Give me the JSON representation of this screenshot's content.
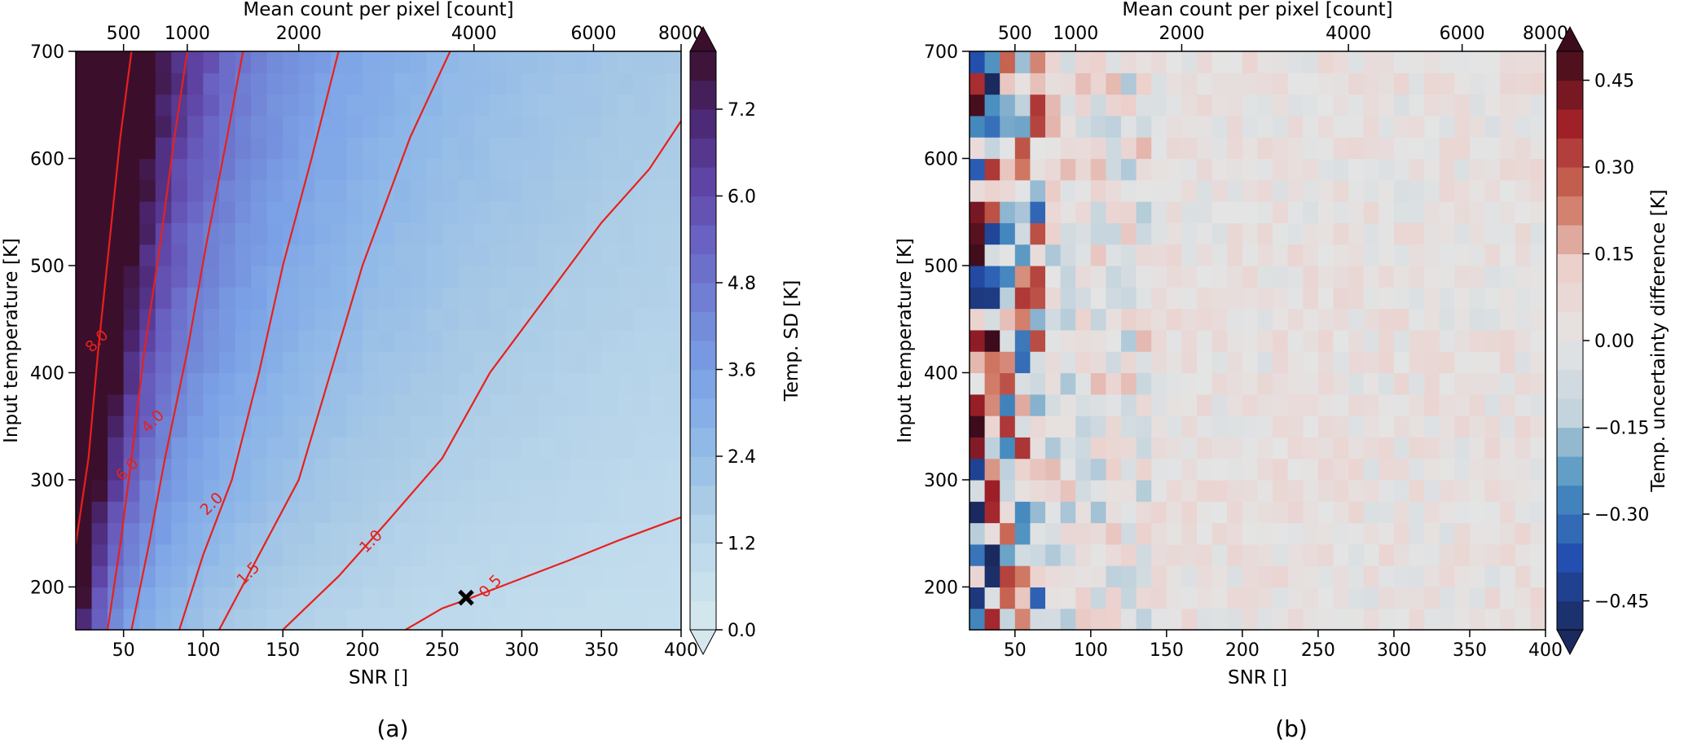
{
  "figure": {
    "panel_labels": [
      "(a)",
      "(b)"
    ]
  },
  "chart_data": [
    {
      "type": "heatmap",
      "panel": "(a)",
      "xlabel": "SNR []",
      "ylabel": "Input temperature [K]",
      "top_xlabel": "Mean count per pixel [count]",
      "xlim": [
        20,
        400
      ],
      "ylim": [
        160,
        700
      ],
      "x_ticks": [
        50,
        100,
        150,
        200,
        250,
        300,
        350,
        400
      ],
      "y_ticks": [
        200,
        300,
        400,
        500,
        600,
        700
      ],
      "top_x_ticks": [
        {
          "label": "500",
          "snr": 50
        },
        {
          "label": "1000",
          "snr": 90
        },
        {
          "label": "2000",
          "snr": 160
        },
        {
          "label": "4000",
          "snr": 270
        },
        {
          "label": "6000",
          "snr": 345
        },
        {
          "label": "8000",
          "snr": 400
        }
      ],
      "grid": {
        "x_start": 20,
        "x_step": 10,
        "nx": 38,
        "y_start": 160,
        "y_step": 20,
        "ny": 27
      },
      "colorbar": {
        "label": "Temp. SD [K]",
        "min": 0.0,
        "max": 8.0,
        "levels": 20,
        "extend": "both",
        "ticks": [
          "0.0",
          "1.2",
          "2.4",
          "3.6",
          "4.8",
          "6.0",
          "7.2"
        ],
        "colors": [
          "#eef3f5",
          "#3b0f2c"
        ]
      },
      "contour_color": "#e8201c",
      "contours": [
        {
          "level": "0.5",
          "points": [
            [
              227,
              160
            ],
            [
              250,
              180
            ],
            [
              265,
              188
            ],
            [
              300,
              208
            ],
            [
              330,
              225
            ],
            [
              360,
              243
            ],
            [
              400,
              265
            ]
          ],
          "label_at": [
            280,
            201
          ]
        },
        {
          "level": "1.0",
          "points": [
            [
              150,
              160
            ],
            [
              185,
              210
            ],
            [
              215,
              260
            ],
            [
              250,
              320
            ],
            [
              280,
              400
            ],
            [
              320,
              480
            ],
            [
              350,
              540
            ],
            [
              380,
              590
            ],
            [
              400,
              635
            ]
          ],
          "label_at": [
            205,
            243
          ]
        },
        {
          "level": "1.5",
          "points": [
            [
              110,
              160
            ],
            [
              135,
              230
            ],
            [
              160,
              300
            ],
            [
              180,
              400
            ],
            [
              200,
              500
            ],
            [
              230,
              620
            ],
            [
              255,
              700
            ]
          ],
          "label_at": [
            128,
            213
          ]
        },
        {
          "level": "2.0",
          "points": [
            [
              85,
              160
            ],
            [
              100,
              230
            ],
            [
              118,
              300
            ],
            [
              135,
              400
            ],
            [
              150,
              500
            ],
            [
              168,
              600
            ],
            [
              185,
              700
            ]
          ],
          "label_at": [
            105,
            278
          ]
        },
        {
          "level": "4.0",
          "points": [
            [
              55,
              160
            ],
            [
              66,
              240
            ],
            [
              76,
              320
            ],
            [
              90,
              420
            ],
            [
              102,
              520
            ],
            [
              115,
              620
            ],
            [
              125,
              700
            ]
          ],
          "label_at": [
            68,
            355
          ]
        },
        {
          "level": "6.0",
          "points": [
            [
              40,
              160
            ],
            [
              48,
              240
            ],
            [
              55,
              320
            ],
            [
              63,
              420
            ],
            [
              73,
              520
            ],
            [
              82,
              620
            ],
            [
              90,
              700
            ]
          ],
          "label_at": [
            52,
            310
          ]
        },
        {
          "level": "8.0",
          "points": [
            [
              20,
              240
            ],
            [
              28,
              320
            ],
            [
              34,
              420
            ],
            [
              41,
              520
            ],
            [
              48,
              620
            ],
            [
              55,
              700
            ]
          ],
          "label_at": [
            33,
            430
          ]
        }
      ],
      "marker": {
        "snr": 265,
        "temperature": 190,
        "symbol": "X"
      }
    },
    {
      "type": "heatmap",
      "panel": "(b)",
      "xlabel": "SNR []",
      "ylabel": "Input temperature [K]",
      "top_xlabel": "Mean count per pixel [count]",
      "xlim": [
        20,
        400
      ],
      "ylim": [
        160,
        700
      ],
      "x_ticks": [
        50,
        100,
        150,
        200,
        250,
        300,
        350,
        400
      ],
      "y_ticks": [
        200,
        300,
        400,
        500,
        600,
        700
      ],
      "top_x_ticks": [
        {
          "label": "500",
          "snr": 50
        },
        {
          "label": "1000",
          "snr": 90
        },
        {
          "label": "2000",
          "snr": 160
        },
        {
          "label": "4000",
          "snr": 270
        },
        {
          "label": "6000",
          "snr": 345
        },
        {
          "label": "8000",
          "snr": 400
        }
      ],
      "grid": {
        "x_start": 20,
        "x_step": 10,
        "nx": 38,
        "y_start": 160,
        "y_step": 20,
        "ny": 27
      },
      "colorbar": {
        "label": "Temp. uncertainty difference [K]",
        "min": -0.5,
        "max": 0.5,
        "levels": 20,
        "extend": "both",
        "ticks": [
          "−0.45",
          "−0.30",
          "−0.15",
          "0.00",
          "0.15",
          "0.30",
          "0.45"
        ],
        "colors": [
          "#1a2a5e",
          "#2350b0",
          "#4a90c0",
          "#c4d4dd",
          "#e4e4e4",
          "#ecd0cc",
          "#cc6e58",
          "#a02028",
          "#3d0c1c"
        ]
      },
      "value_range_note": "random cell-wise differences, strongest at low SNR"
    }
  ]
}
